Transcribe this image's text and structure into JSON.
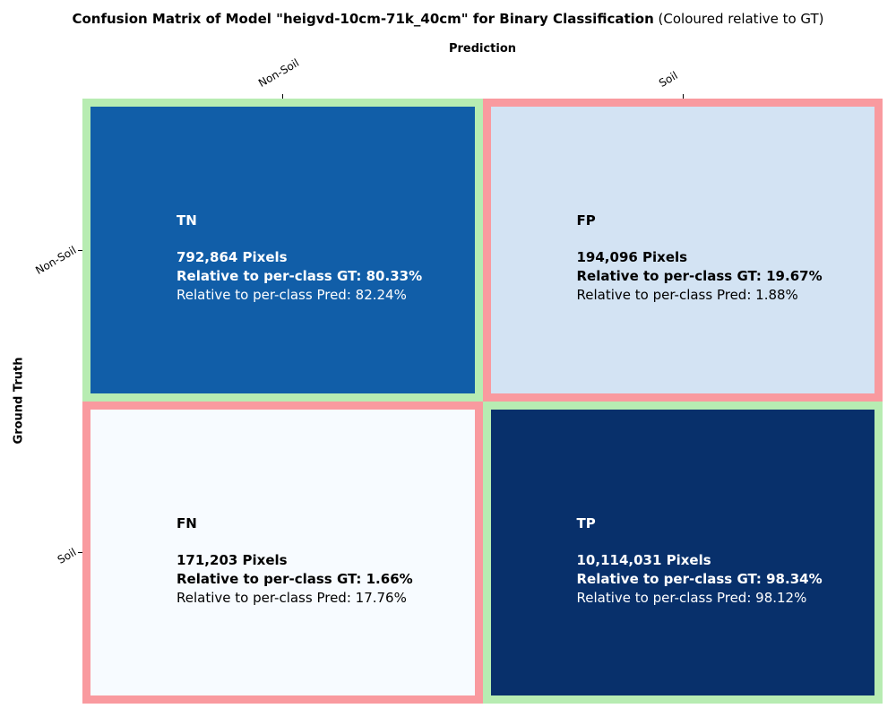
{
  "chart_data": {
    "type": "heatmap",
    "title": "Confusion Matrix of Model \"heigvd-10cm-71k_40cm\" for Binary Classification",
    "subtitle": "(Coloured relative to GT)",
    "xlabel": "Prediction",
    "ylabel": "Ground Truth",
    "x_categories": [
      "Non-Soil",
      "Soil"
    ],
    "y_categories": [
      "Non-Soil",
      "Soil"
    ],
    "colors": {
      "correct_border": "#b7ecb2",
      "incorrect_border": "#f99a9f"
    },
    "cells": [
      {
        "row": 0,
        "col": 0,
        "abbr": "TN",
        "pixels": "792,864 Pixels",
        "rel_gt": "Relative to per-class GT: 80.33%",
        "rel_pred": "Relative to per-class Pred: 82.24%",
        "value": 792864,
        "fill": "#115ea8",
        "text_color": "#ffffff",
        "correct": true
      },
      {
        "row": 0,
        "col": 1,
        "abbr": "FP",
        "pixels": "194,096 Pixels",
        "rel_gt": "Relative to per-class GT: 19.67%",
        "rel_pred": "Relative to per-class Pred: 1.88%",
        "value": 194096,
        "fill": "#d3e3f3",
        "text_color": "#000000",
        "correct": false
      },
      {
        "row": 1,
        "col": 0,
        "abbr": "FN",
        "pixels": "171,203 Pixels",
        "rel_gt": "Relative to per-class GT: 1.66%",
        "rel_pred": "Relative to per-class Pred: 17.76%",
        "value": 171203,
        "fill": "#f7fbff",
        "text_color": "#000000",
        "correct": false
      },
      {
        "row": 1,
        "col": 1,
        "abbr": "TP",
        "pixels": "10,114,031 Pixels",
        "rel_gt": "Relative to per-class GT: 98.34%",
        "rel_pred": "Relative to per-class Pred: 98.12%",
        "value": 10114031,
        "fill": "#08306b",
        "text_color": "#ffffff",
        "correct": true
      }
    ]
  }
}
